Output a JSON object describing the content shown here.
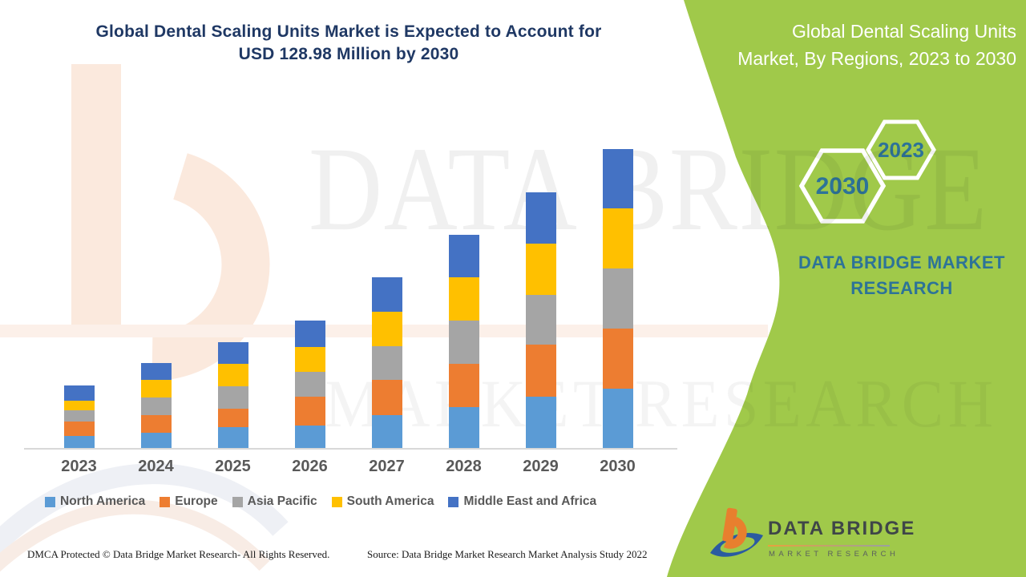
{
  "header": {
    "title_line1": "Global Dental Scaling Units Market is Expected to Account for",
    "title_line2": "USD 128.98 Million by 2030"
  },
  "side_panel": {
    "title_line1": "Global Dental Scaling Units",
    "title_line2": "Market, By Regions, 2023 to 2030",
    "hex_year_small": "2023",
    "hex_year_large": "2030",
    "brand_line1": "DATA BRIDGE MARKET",
    "brand_line2": "RESEARCH",
    "panel_color": "#a0c94a",
    "accent_text_color": "#2d7398"
  },
  "watermark": {
    "line1": "DATA BRIDGE",
    "line2": "MARKET RESEARCH"
  },
  "chart_data": {
    "type": "bar",
    "stacked": true,
    "title": "Global Dental Scaling Units Market, By Regions, 2023 to 2030",
    "unit": "USD Million",
    "categories": [
      "2023",
      "2024",
      "2025",
      "2026",
      "2027",
      "2028",
      "2029",
      "2030"
    ],
    "series": [
      {
        "name": "North America",
        "color": "#5B9BD5",
        "values": [
          5.4,
          6.8,
          9.4,
          10.1,
          14.4,
          18.0,
          22.3,
          25.8
        ]
      },
      {
        "name": "Europe",
        "color": "#ED7D31",
        "values": [
          6.3,
          7.6,
          7.7,
          12.3,
          15.2,
          18.5,
          22.5,
          26.0
        ]
      },
      {
        "name": "Asia Pacific",
        "color": "#A5A5A5",
        "values": [
          4.7,
          7.7,
          9.7,
          10.7,
          14.7,
          18.7,
          21.4,
          25.8
        ]
      },
      {
        "name": "South America",
        "color": "#FFC000",
        "values": [
          4.3,
          7.5,
          9.7,
          10.6,
          14.8,
          18.7,
          22.2,
          25.9
        ]
      },
      {
        "name": "Middle East and Africa",
        "color": "#4472C4",
        "values": [
          6.5,
          7.2,
          9.5,
          11.6,
          14.6,
          18.2,
          22.0,
          25.48
        ]
      }
    ],
    "totals_estimated": [
      27.2,
      36.8,
      46.0,
      55.3,
      73.7,
      92.1,
      110.4,
      128.98
    ],
    "xlabel": "",
    "ylabel": "",
    "ylim": [
      0,
      135
    ],
    "grid": false,
    "y_axis_shown": false,
    "legend_position": "bottom"
  },
  "footer": {
    "dmca": "DMCA Protected © Data Bridge Market Research- All Rights Reserved.",
    "source": "Source: Data Bridge Market Research Market Analysis Study 2022",
    "logo_title": "DATA BRIDGE",
    "logo_subtitle": "MARKET RESEARCH"
  }
}
